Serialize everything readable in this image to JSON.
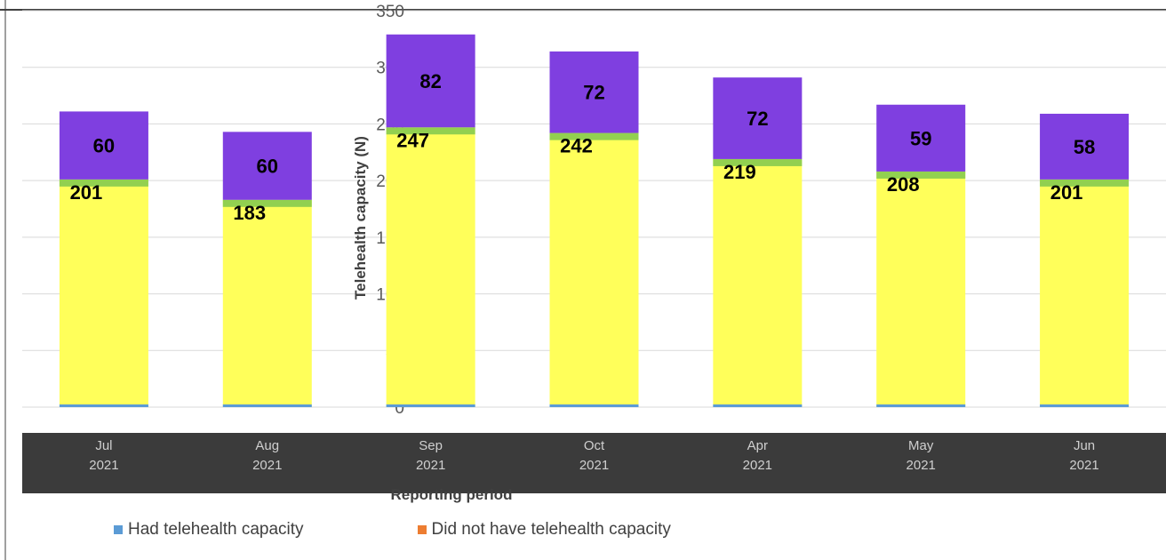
{
  "chart_data": {
    "type": "bar",
    "stacked": true,
    "ylabel": "Telehealth capacity (N)",
    "xlabel": "Reporting period",
    "ylim": [
      0,
      350
    ],
    "yticks": [
      0,
      50,
      100,
      150,
      200,
      250,
      300,
      350
    ],
    "grid": true,
    "legend_position": "bottom",
    "categories": [
      {
        "month": "Jul",
        "year": "2021"
      },
      {
        "month": "Aug",
        "year": "2021"
      },
      {
        "month": "Sep",
        "year": "2021"
      },
      {
        "month": "Oct",
        "year": "2021"
      },
      {
        "month": "Apr",
        "year": "2021"
      },
      {
        "month": "May",
        "year": "2021"
      },
      {
        "month": "Jun",
        "year": "2021"
      }
    ],
    "series": [
      {
        "name": "Had telehealth capacity",
        "color": "#5B9BD5",
        "values": [
          201,
          183,
          247,
          242,
          219,
          208,
          201
        ]
      },
      {
        "name": "Did not have telehealth capacity",
        "color": "#ED7D31",
        "values": [
          60,
          60,
          82,
          72,
          72,
          59,
          58
        ]
      }
    ],
    "rendered_fills": {
      "lower": "#FFFF5A",
      "upper": "#7F3FE0",
      "accent": "#92D050"
    }
  }
}
